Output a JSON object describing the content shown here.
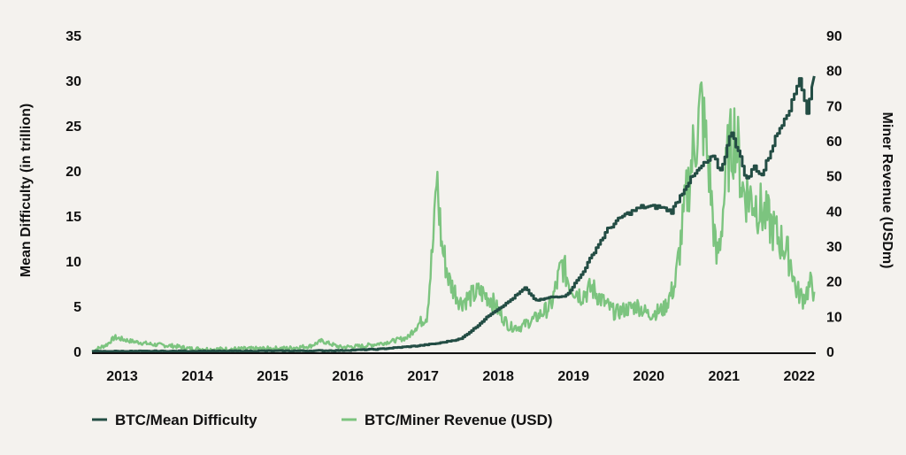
{
  "chart_data": {
    "type": "line",
    "title": "",
    "x_ticks": [
      "2013",
      "2014",
      "2015",
      "2016",
      "2017",
      "2018",
      "2019",
      "2020",
      "2021",
      "2022"
    ],
    "y_left": {
      "label": "Mean Difficulty (in trillion)",
      "ylim": [
        0,
        35
      ],
      "ticks": [
        "35",
        "30",
        "25",
        "20",
        "15",
        "10",
        "5",
        "0"
      ]
    },
    "y_right": {
      "label": "Miner Revenue (USDm)",
      "ylim": [
        0,
        90
      ],
      "ticks": [
        "90",
        "80",
        "70",
        "60",
        "50",
        "40",
        "30",
        "20",
        "10",
        "0"
      ]
    },
    "legend": [
      "BTC/Mean Difficulty",
      "BTC/Miner Revenue (USD)"
    ],
    "colors": {
      "difficulty": "#234d44",
      "revenue": "#7cc47f",
      "axis": "#111111",
      "background": "#f4f2ee"
    },
    "series": [
      {
        "name": "BTC/Mean Difficulty",
        "axis": "left",
        "x": [
          2012.7,
          2013.0,
          2013.5,
          2014.0,
          2014.5,
          2015.0,
          2015.5,
          2016.0,
          2016.5,
          2017.0,
          2017.3,
          2017.6,
          2017.8,
          2018.0,
          2018.2,
          2018.45,
          2018.6,
          2018.8,
          2019.0,
          2019.2,
          2019.4,
          2019.55,
          2019.75,
          2020.0,
          2020.25,
          2020.4,
          2020.6,
          2020.8,
          2020.95,
          2021.05,
          2021.2,
          2021.4,
          2021.5,
          2021.6,
          2021.75,
          2021.9,
          2022.0,
          2022.1,
          2022.2,
          2022.3
        ],
        "values": [
          0.0,
          0.01,
          0.02,
          0.03,
          0.02,
          0.05,
          0.06,
          0.1,
          0.25,
          0.6,
          0.9,
          1.4,
          2.7,
          4.2,
          5.3,
          7.0,
          5.6,
          6.0,
          6.2,
          8.5,
          11.5,
          13.5,
          15.0,
          16.0,
          16.0,
          15.5,
          18.5,
          20.5,
          21.5,
          20.0,
          24.5,
          19.0,
          20.5,
          19.5,
          23.0,
          26.0,
          27.5,
          30.5,
          26.5,
          30.5
        ]
      },
      {
        "name": "BTC/Miner Revenue (USD)",
        "axis": "right",
        "x": [
          2012.7,
          2012.9,
          2013.0,
          2013.2,
          2013.5,
          2013.8,
          2014.0,
          2014.3,
          2014.6,
          2015.0,
          2015.3,
          2015.6,
          2015.75,
          2016.0,
          2016.3,
          2016.6,
          2016.9,
          2017.0,
          2017.15,
          2017.25,
          2017.28,
          2017.35,
          2017.45,
          2017.6,
          2017.85,
          2018.0,
          2018.15,
          2018.25,
          2018.4,
          2018.6,
          2018.8,
          2018.95,
          2019.05,
          2019.2,
          2019.35,
          2019.5,
          2019.65,
          2019.8,
          2019.95,
          2020.1,
          2020.3,
          2020.45,
          2020.6,
          2020.7,
          2020.8,
          2020.9,
          2021.0,
          2021.05,
          2021.15,
          2021.25,
          2021.35,
          2021.5,
          2021.6,
          2021.7,
          2021.8,
          2021.9,
          2022.0,
          2022.05,
          2022.15,
          2022.25,
          2022.3
        ],
        "values": [
          0.0,
          2.0,
          4.0,
          3.0,
          2.0,
          1.5,
          0.8,
          0.6,
          0.7,
          0.8,
          0.9,
          1.5,
          3.0,
          1.2,
          1.5,
          2.5,
          4.0,
          7.0,
          10.0,
          35.0,
          50.0,
          30.0,
          20.0,
          14.0,
          17.0,
          15.0,
          10.0,
          7.0,
          7.0,
          9.5,
          13.0,
          25.0,
          19.0,
          16.0,
          18.0,
          14.0,
          11.0,
          12.0,
          13.0,
          10.5,
          12.0,
          19.0,
          44.0,
          58.0,
          70.0,
          52.0,
          26.0,
          32.0,
          55.0,
          63.0,
          46.0,
          43.0,
          40.0,
          37.0,
          33.0,
          30.0,
          25.0,
          18.0,
          15.0,
          19.0,
          17.0
        ]
      }
    ]
  }
}
